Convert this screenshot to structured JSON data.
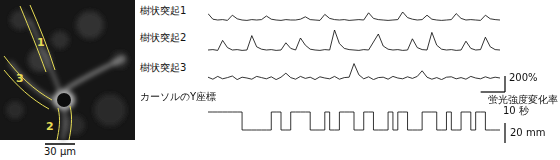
{
  "image": {
    "regions": [
      "1",
      "2",
      "3"
    ],
    "scale_bar": {
      "value": 30,
      "label": "30 μm"
    }
  },
  "chart_data": [
    {
      "type": "line",
      "title": "樹状突起1",
      "color": "#000000",
      "line_style": "solid",
      "grid": false,
      "tick_labels": false,
      "xlim": [
        0,
        120
      ],
      "ylim": [
        -25,
        200
      ],
      "x": [
        0,
        2,
        4,
        6,
        8,
        10,
        12,
        14,
        16,
        18,
        20,
        22,
        24,
        26,
        28,
        30,
        32,
        34,
        36,
        38,
        40,
        42,
        44,
        46,
        48,
        50,
        52,
        54,
        56,
        58,
        60,
        62,
        64,
        66,
        68,
        70,
        72,
        74,
        76,
        78,
        80,
        82,
        84,
        86,
        88,
        90,
        92,
        94,
        96,
        98,
        100,
        102,
        104,
        106,
        108,
        110,
        112,
        114,
        116,
        118,
        120
      ],
      "values": [
        80,
        10,
        0,
        5,
        -5,
        60,
        15,
        0,
        -5,
        5,
        0,
        5,
        50,
        10,
        0,
        -5,
        5,
        0,
        0,
        10,
        40,
        5,
        0,
        -5,
        70,
        20,
        5,
        0,
        5,
        -5,
        0,
        5,
        0,
        90,
        20,
        5,
        0,
        -5,
        0,
        5,
        100,
        30,
        10,
        0,
        5,
        60,
        10,
        0,
        -5,
        0,
        5,
        80,
        20,
        0,
        5,
        0,
        -5,
        60,
        15,
        5,
        0
      ]
    },
    {
      "type": "line",
      "title": "樹状突起2",
      "color": "#000000",
      "line_style": "solid",
      "grid": false,
      "tick_labels": false,
      "xlim": [
        0,
        120
      ],
      "ylim": [
        -25,
        275
      ],
      "x": [
        0,
        2,
        4,
        6,
        8,
        10,
        12,
        14,
        16,
        18,
        20,
        22,
        24,
        26,
        28,
        30,
        32,
        34,
        36,
        38,
        40,
        42,
        44,
        46,
        48,
        50,
        52,
        54,
        56,
        58,
        60,
        62,
        64,
        66,
        68,
        70,
        72,
        74,
        76,
        78,
        80,
        82,
        84,
        86,
        88,
        90,
        92,
        94,
        96,
        98,
        100,
        102,
        104,
        106,
        108,
        110,
        112,
        114,
        116,
        118,
        120
      ],
      "values": [
        0,
        5,
        -5,
        120,
        30,
        0,
        5,
        -5,
        0,
        180,
        40,
        10,
        0,
        5,
        -5,
        0,
        90,
        20,
        0,
        150,
        60,
        10,
        0,
        -5,
        5,
        0,
        250,
        80,
        20,
        5,
        0,
        -5,
        5,
        0,
        100,
        200,
        50,
        10,
        0,
        5,
        -5,
        0,
        140,
        30,
        5,
        0,
        220,
        60,
        10,
        0,
        5,
        -5,
        0,
        110,
        20,
        0,
        5,
        160,
        40,
        5,
        0
      ]
    },
    {
      "type": "line",
      "title": "樹状突起3",
      "color": "#000000",
      "line_style": "solid",
      "grid": false,
      "tick_labels": false,
      "xlim": [
        0,
        120
      ],
      "ylim": [
        -25,
        250
      ],
      "x": [
        0,
        2,
        4,
        6,
        8,
        10,
        12,
        14,
        16,
        18,
        20,
        22,
        24,
        26,
        28,
        30,
        32,
        34,
        36,
        38,
        40,
        42,
        44,
        46,
        48,
        50,
        52,
        54,
        56,
        58,
        60,
        62,
        64,
        66,
        68,
        70,
        72,
        74,
        76,
        78,
        80,
        82,
        84,
        86,
        88,
        90,
        92,
        94,
        96,
        98,
        100,
        102,
        104,
        106,
        108,
        110,
        112,
        114,
        116,
        118,
        120
      ],
      "values": [
        10,
        -15,
        20,
        -10,
        5,
        25,
        -20,
        10,
        0,
        -15,
        20,
        5,
        -10,
        15,
        -20,
        10,
        60,
        5,
        -15,
        20,
        -5,
        10,
        -20,
        15,
        0,
        -10,
        20,
        -15,
        5,
        10,
        180,
        40,
        -10,
        15,
        -20,
        5,
        10,
        -15,
        20,
        0,
        -10,
        15,
        -5,
        20,
        90,
        10,
        -15,
        5,
        -20,
        10,
        15,
        -10,
        5,
        -15,
        20,
        0,
        -10,
        15,
        -5,
        10,
        0
      ],
      "scale_bars": [
        {
          "axis": "y",
          "value": 200,
          "label": "200%",
          "unit_label": "蛍光強度変化率"
        },
        {
          "axis": "x",
          "value": 10,
          "label": "10 秒"
        }
      ]
    },
    {
      "type": "line",
      "title": "カーソルのY座標",
      "color": "#000000",
      "line_style": "step",
      "grid": false,
      "tick_labels": false,
      "xlim": [
        0,
        120
      ],
      "ylim": [
        -5,
        25
      ],
      "x": [
        0,
        2,
        4,
        6,
        8,
        10,
        12,
        14,
        16,
        18,
        20,
        22,
        24,
        26,
        28,
        30,
        32,
        34,
        36,
        38,
        40,
        42,
        44,
        46,
        48,
        50,
        52,
        54,
        56,
        58,
        60,
        62,
        64,
        66,
        68,
        70,
        72,
        74,
        76,
        78,
        80,
        82,
        84,
        86,
        88,
        90,
        92,
        94,
        96,
        98,
        100,
        102,
        104,
        106,
        108,
        110,
        112,
        114,
        116,
        118,
        120
      ],
      "values": [
        18,
        18,
        18,
        18,
        18,
        18,
        18,
        0,
        0,
        0,
        0,
        0,
        0,
        18,
        18,
        0,
        0,
        18,
        18,
        18,
        18,
        0,
        0,
        0,
        18,
        0,
        0,
        18,
        18,
        18,
        0,
        0,
        18,
        18,
        0,
        0,
        0,
        18,
        0,
        18,
        18,
        0,
        0,
        0,
        18,
        18,
        18,
        0,
        0,
        18,
        0,
        0,
        18,
        18,
        0,
        18,
        18,
        0,
        0,
        0,
        0
      ],
      "scale_bars": [
        {
          "axis": "y",
          "value": 20,
          "label": "20 mm"
        }
      ]
    }
  ]
}
